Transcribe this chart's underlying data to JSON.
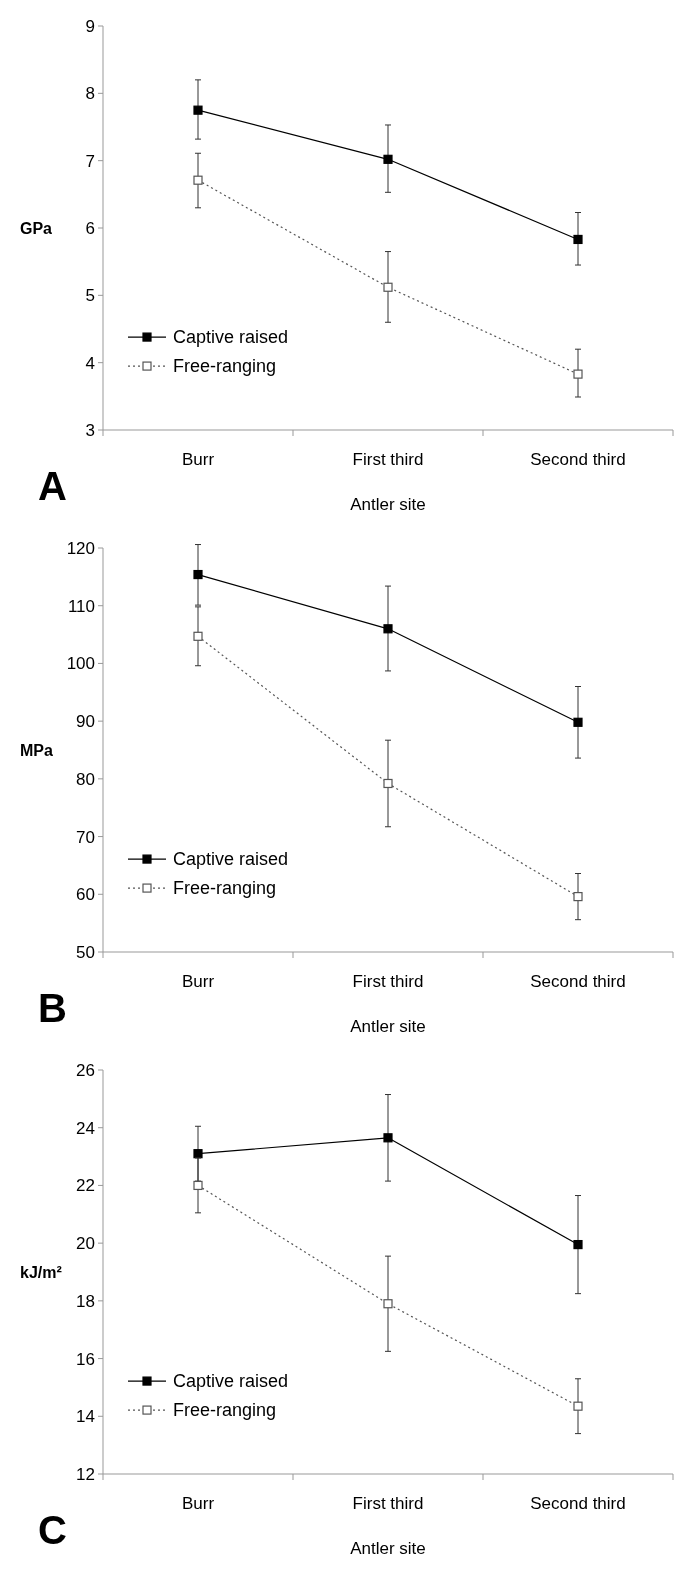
{
  "chart_data": [
    {
      "type": "line",
      "ylabel": "GPa",
      "xlabel": "Antler site",
      "categories": [
        "Burr",
        "First third",
        "Second third"
      ],
      "ylim": [
        3,
        9
      ],
      "yticks": [
        3,
        4,
        5,
        6,
        7,
        8,
        9
      ],
      "legend": "bottom left",
      "grid": false,
      "annotations": [
        "A"
      ],
      "series": [
        {
          "name": "Captive raised",
          "color": "#000000",
          "marker": "square",
          "line_style": "solid",
          "values": [
            7.75,
            7.02,
            5.83
          ],
          "errors": [
            [
              7.32,
              8.2
            ],
            [
              6.53,
              7.53
            ],
            [
              5.45,
              6.23
            ]
          ]
        },
        {
          "name": "Free-ranging",
          "color": "#555555",
          "marker": "square",
          "line_style": "dotted",
          "values": [
            6.71,
            5.12,
            3.83
          ],
          "errors": [
            [
              6.3,
              7.11
            ],
            [
              4.6,
              5.65
            ],
            [
              3.49,
              4.2
            ]
          ]
        }
      ]
    },
    {
      "type": "line",
      "ylabel": "MPa",
      "xlabel": "Antler site",
      "categories": [
        "Burr",
        "First third",
        "Second third"
      ],
      "ylim": [
        50,
        120
      ],
      "yticks": [
        50,
        60,
        70,
        80,
        90,
        100,
        110,
        120
      ],
      "legend": "bottom left",
      "grid": false,
      "annotations": [
        "B"
      ],
      "series": [
        {
          "name": "Captive raised",
          "color": "#000000",
          "marker": "square",
          "line_style": "solid",
          "values": [
            115.4,
            106,
            89.8
          ],
          "errors": [
            [
              110.1,
              120.6
            ],
            [
              98.7,
              113.4
            ],
            [
              83.6,
              96
            ]
          ]
        },
        {
          "name": "Free-ranging",
          "color": "#555555",
          "marker": "square",
          "line_style": "dotted",
          "values": [
            104.7,
            79.2,
            59.6
          ],
          "errors": [
            [
              99.6,
              109.8
            ],
            [
              71.7,
              86.7
            ],
            [
              55.6,
              63.6
            ]
          ]
        }
      ]
    },
    {
      "type": "line",
      "ylabel": "kJ/m²",
      "xlabel": "Antler site",
      "categories": [
        "Burr",
        "First third",
        "Second third"
      ],
      "ylim": [
        12,
        26
      ],
      "yticks": [
        12,
        14,
        16,
        18,
        20,
        22,
        24,
        26
      ],
      "legend": "bottom left",
      "grid": false,
      "annotations": [
        "C"
      ],
      "series": [
        {
          "name": "Captive raised",
          "color": "#000000",
          "marker": "square",
          "line_style": "solid",
          "values": [
            23.1,
            23.65,
            19.95
          ],
          "errors": [
            [
              22.15,
              24.05
            ],
            [
              22.15,
              25.15
            ],
            [
              18.25,
              21.65
            ]
          ]
        },
        {
          "name": "Free-ranging",
          "color": "#555555",
          "marker": "square",
          "line_style": "dotted",
          "values": [
            22.0,
            17.9,
            14.35
          ],
          "errors": [
            [
              21.05,
              22.95
            ],
            [
              16.25,
              19.55
            ],
            [
              13.4,
              15.3
            ]
          ]
        }
      ]
    }
  ]
}
